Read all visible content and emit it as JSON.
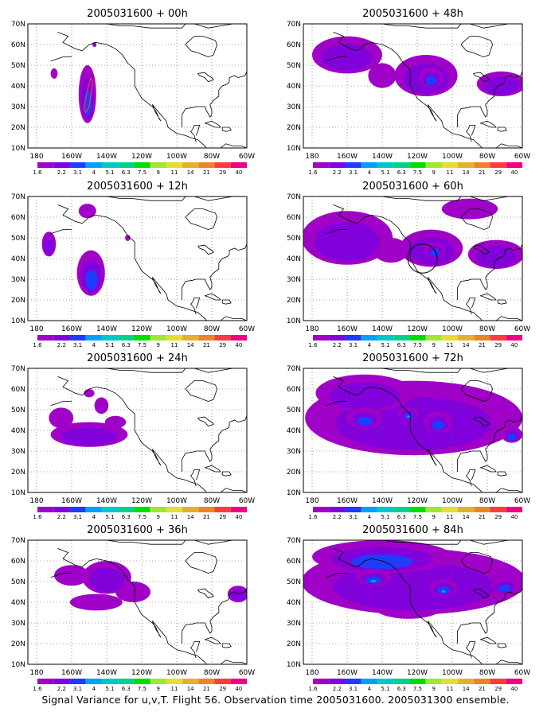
{
  "caption": "Signal Variance for u,v,T. Flight 56. Observation time 2005031600. 2005031300 ensemble.",
  "colorbar": {
    "labels": [
      "1.6",
      "2.2",
      "3.1",
      "4",
      "5.1",
      "6.3",
      "7.5",
      "9",
      "11",
      "14",
      "21",
      "29",
      "40"
    ],
    "colors": [
      "#a000c8",
      "#8200dc",
      "#1e3cff",
      "#00a0ff",
      "#00c8c8",
      "#00d28c",
      "#00dc00",
      "#a0e632",
      "#e6dc32",
      "#e6af2d",
      "#f08228",
      "#fa3c3c",
      "#f00082"
    ]
  },
  "axes": {
    "lat_ticks": [
      "70N",
      "60N",
      "50N",
      "40N",
      "30N",
      "20N",
      "10N"
    ],
    "lon_ticks": [
      "180",
      "160W",
      "140W",
      "120W",
      "100W",
      "80W",
      "60W"
    ],
    "lat_range": [
      10,
      70
    ],
    "lon_range": [
      -185,
      -60
    ],
    "grid": "dotted"
  },
  "chart_data": [
    {
      "type": "heatmap",
      "title": "2005031600 + 00h",
      "lead": "00h",
      "blobs": [
        {
          "lon": -151,
          "lat": 36,
          "rlon": 5,
          "rlat": 14,
          "level": 3,
          "shift": 0.3
        },
        {
          "lon": -170,
          "lat": 46,
          "rlon": 2,
          "rlat": 2.5,
          "level": 1
        },
        {
          "lon": -147,
          "lat": 60,
          "rlon": 1.2,
          "rlat": 1.2,
          "level": 1
        }
      ],
      "outline": [
        [
          -149,
          44
        ],
        [
          -148,
          42
        ],
        [
          -150,
          30
        ],
        [
          -152,
          27
        ],
        [
          -153,
          29
        ],
        [
          -151,
          38
        ],
        [
          -149,
          44
        ]
      ]
    },
    {
      "type": "heatmap",
      "title": "2005031600 + 12h",
      "lead": "12h",
      "blobs": [
        {
          "lon": -151,
          "lat": 63,
          "rlon": 5,
          "rlat": 3.5,
          "level": 1
        },
        {
          "lon": -173,
          "lat": 47,
          "rlon": 4,
          "rlat": 6,
          "level": 2
        },
        {
          "lon": -149,
          "lat": 33,
          "rlon": 8,
          "rlat": 11,
          "level": 3,
          "shift": 0.4
        },
        {
          "lon": -148,
          "lat": 37,
          "rlon": 6,
          "rlat": 5,
          "level": 2
        },
        {
          "lon": -128,
          "lat": 50,
          "rlon": 1.5,
          "rlat": 1.5,
          "level": 1
        }
      ]
    },
    {
      "type": "heatmap",
      "title": "2005031600 + 24h",
      "lead": "24h",
      "blobs": [
        {
          "lon": -150,
          "lat": 38,
          "rlon": 22,
          "rlat": 6,
          "level": 2
        },
        {
          "lon": -166,
          "lat": 46,
          "rlon": 7,
          "rlat": 5,
          "level": 1
        },
        {
          "lon": -135,
          "lat": 44,
          "rlon": 6,
          "rlat": 3,
          "level": 1
        },
        {
          "lon": -143,
          "lat": 52,
          "rlon": 4,
          "rlat": 4,
          "level": 1
        },
        {
          "lon": -150,
          "lat": 58,
          "rlon": 3,
          "rlat": 2,
          "level": 1
        }
      ]
    },
    {
      "type": "heatmap",
      "title": "2005031600 + 36h",
      "lead": "36h",
      "blobs": [
        {
          "lon": -160,
          "lat": 53,
          "rlon": 10,
          "rlat": 5,
          "level": 1
        },
        {
          "lon": -146,
          "lat": 40,
          "rlon": 15,
          "rlat": 4,
          "level": 1
        },
        {
          "lon": -140,
          "lat": 52,
          "rlon": 14,
          "rlat": 8,
          "level": 2
        },
        {
          "lon": -125,
          "lat": 45,
          "rlon": 10,
          "rlat": 5,
          "level": 1
        },
        {
          "lon": -65,
          "lat": 44,
          "rlon": 6,
          "rlat": 4,
          "level": 2
        }
      ]
    },
    {
      "type": "heatmap",
      "title": "2005031600 + 48h",
      "lead": "48h",
      "blobs": [
        {
          "lon": -160,
          "lat": 55,
          "rlon": 20,
          "rlat": 9,
          "level": 2
        },
        {
          "lon": -115,
          "lat": 45,
          "rlon": 18,
          "rlat": 10,
          "level": 2
        },
        {
          "lon": -112,
          "lat": 44,
          "rlon": 7,
          "rlat": 5,
          "level": 3
        },
        {
          "lon": -72,
          "lat": 41,
          "rlon": 14,
          "rlat": 6,
          "level": 2
        },
        {
          "lon": -140,
          "lat": 45,
          "rlon": 8,
          "rlat": 6,
          "level": 1
        }
      ]
    },
    {
      "type": "heatmap",
      "title": "2005031600 + 60h",
      "lead": "60h",
      "blobs": [
        {
          "lon": -160,
          "lat": 50,
          "rlon": 26,
          "rlat": 13,
          "level": 2
        },
        {
          "lon": -112,
          "lat": 45,
          "rlon": 18,
          "rlat": 9,
          "level": 2
        },
        {
          "lon": -110,
          "lat": 44,
          "rlon": 6,
          "rlat": 4,
          "level": 3
        },
        {
          "lon": -75,
          "lat": 42,
          "rlon": 16,
          "rlat": 7,
          "level": 2
        },
        {
          "lon": -90,
          "lat": 64,
          "rlon": 16,
          "rlat": 5,
          "level": 1
        },
        {
          "lon": -135,
          "lat": 44,
          "rlon": 10,
          "rlat": 6,
          "level": 1
        }
      ],
      "circle": {
        "lon": -117,
        "lat": 40,
        "r": 7
      }
    },
    {
      "type": "heatmap",
      "title": "2005031600 + 72h",
      "lead": "72h",
      "blobs": [
        {
          "lon": -122,
          "lat": 46,
          "rlon": 62,
          "rlat": 18,
          "level": 2
        },
        {
          "lon": -150,
          "lat": 58,
          "rlon": 28,
          "rlat": 9,
          "level": 2
        },
        {
          "lon": -108,
          "lat": 44,
          "rlon": 8,
          "rlat": 5,
          "level": 3
        },
        {
          "lon": -66,
          "lat": 38,
          "rlon": 6,
          "rlat": 4,
          "level": 3
        },
        {
          "lon": -150,
          "lat": 46,
          "rlon": 10,
          "rlat": 5,
          "level": 3
        },
        {
          "lon": -125,
          "lat": 48,
          "rlon": 6,
          "rlat": 3,
          "level": 4
        }
      ]
    },
    {
      "type": "heatmap",
      "title": "2005031600 + 84h",
      "lead": "84h",
      "blobs": [
        {
          "lon": -122,
          "lat": 50,
          "rlon": 64,
          "rlat": 16,
          "level": 2
        },
        {
          "lon": -140,
          "lat": 62,
          "rlon": 40,
          "rlat": 8,
          "level": 3
        },
        {
          "lon": -145,
          "lat": 52,
          "rlon": 10,
          "rlat": 4,
          "level": 4
        },
        {
          "lon": -105,
          "lat": 47,
          "rlon": 8,
          "rlat": 4,
          "level": 4
        },
        {
          "lon": -70,
          "lat": 48,
          "rlon": 8,
          "rlat": 4,
          "level": 3
        },
        {
          "lon": -125,
          "lat": 38,
          "rlon": 20,
          "rlat": 6,
          "level": 1
        }
      ]
    }
  ]
}
